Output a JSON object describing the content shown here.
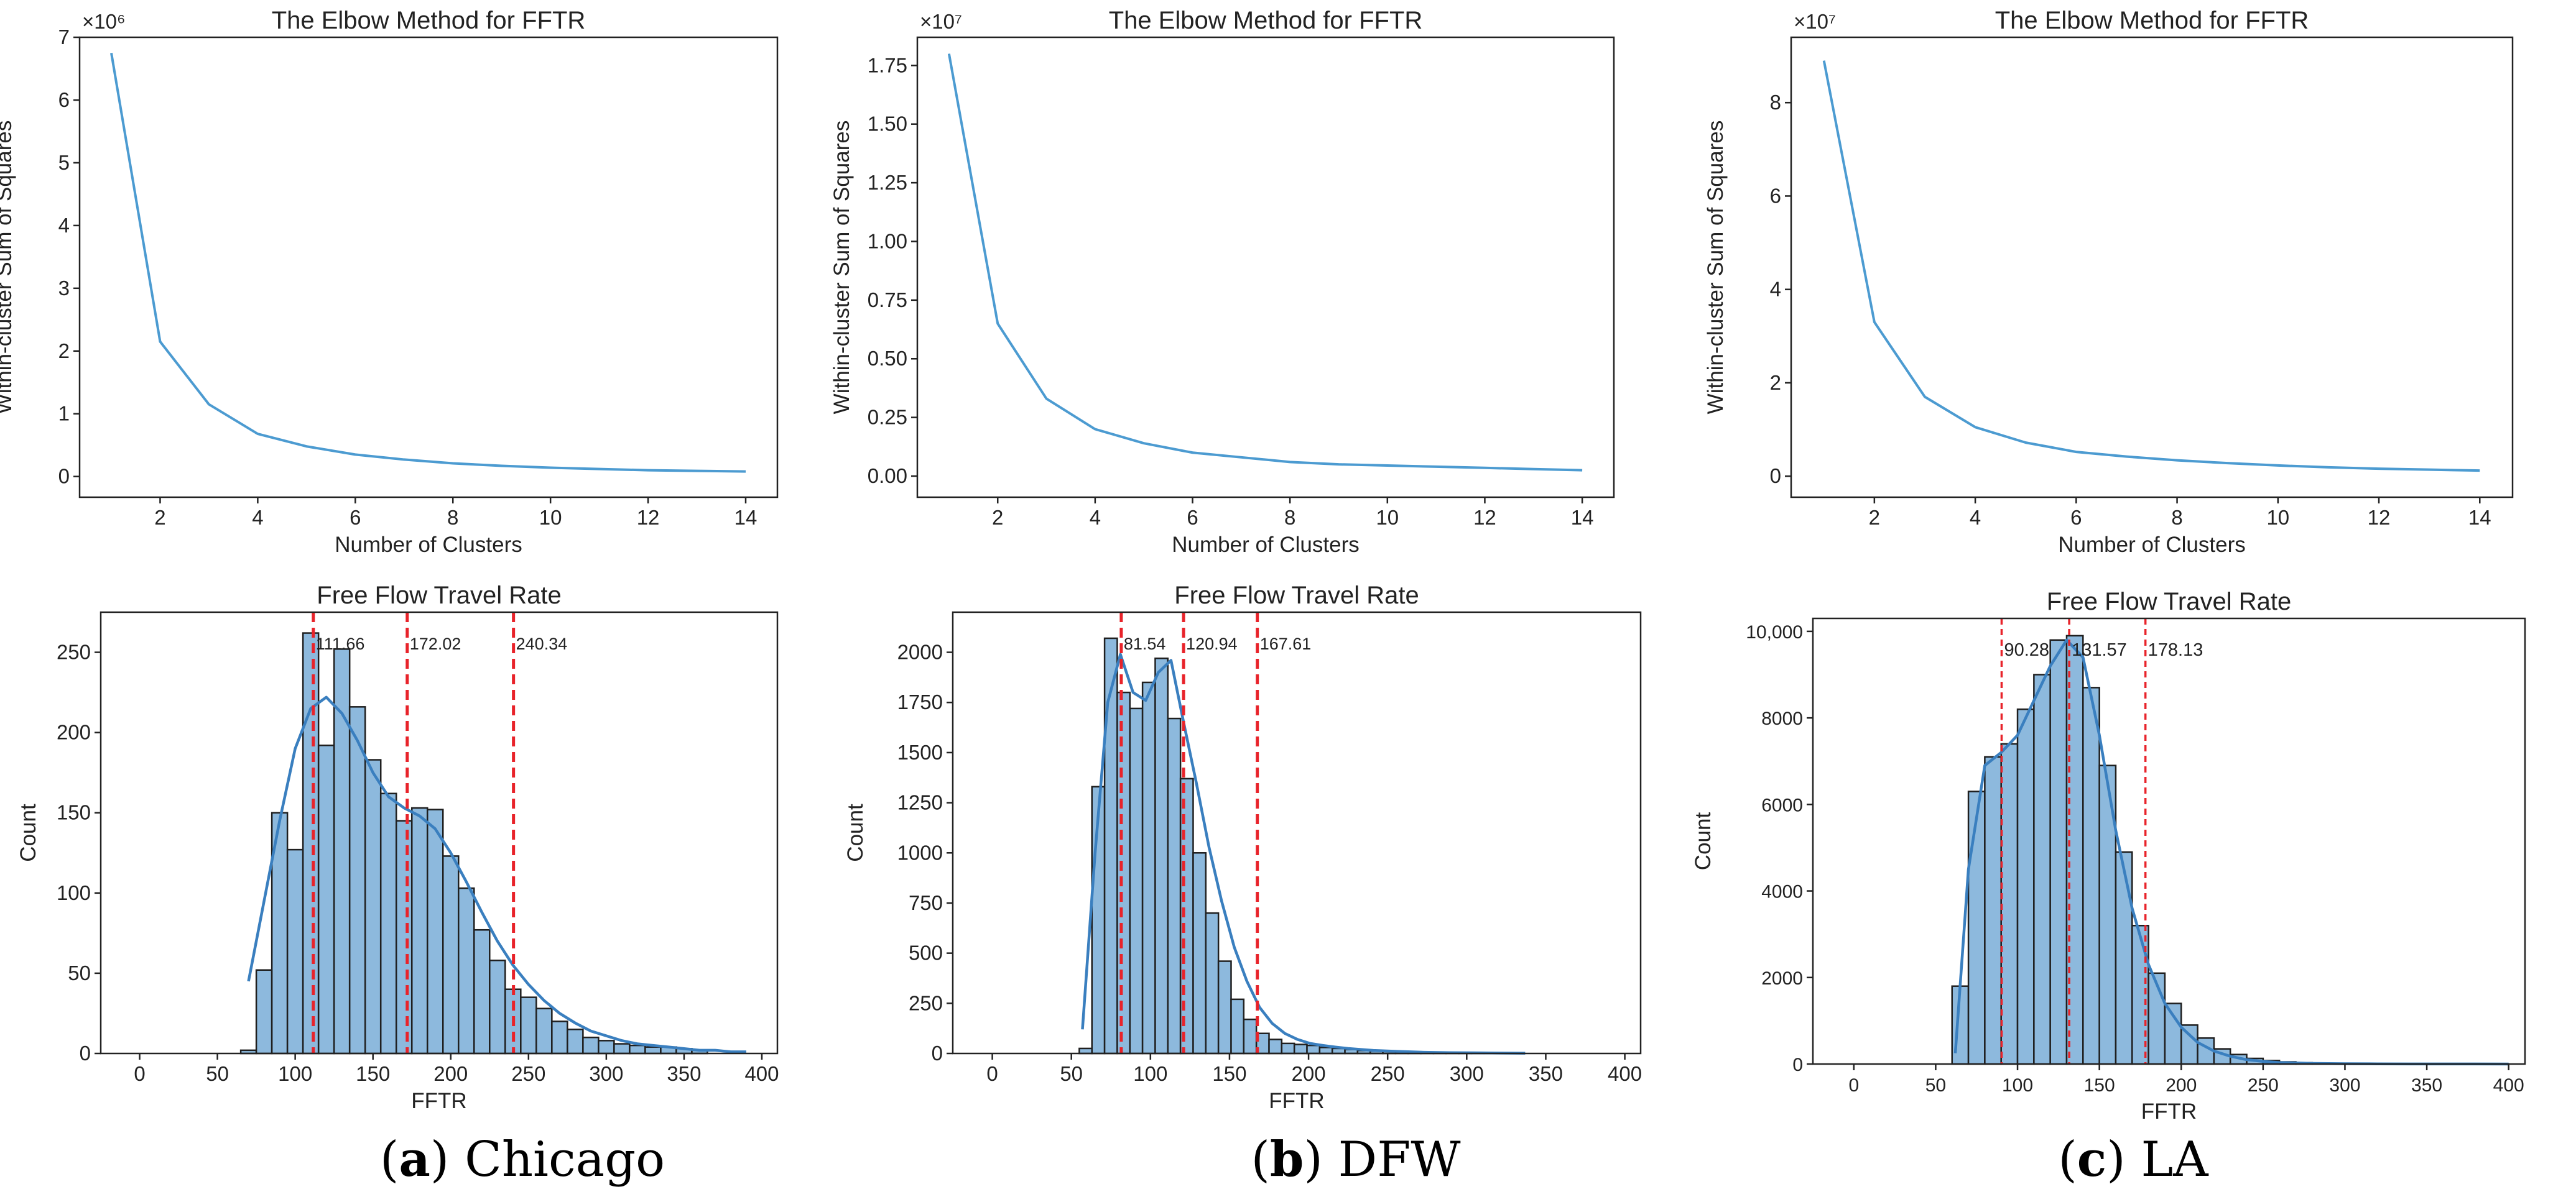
{
  "chart_data": [
    {
      "type": "line",
      "panel": "a",
      "title": "The Elbow Method for FFTR",
      "xlabel": "Number of Clusters",
      "ylabel": "Within-cluster Sum of Squares",
      "multiplier_label": "×10⁶",
      "x": [
        1,
        2,
        3,
        4,
        5,
        6,
        7,
        8,
        9,
        10,
        11,
        12,
        13,
        14
      ],
      "y": [
        6.75,
        2.15,
        1.15,
        0.68,
        0.48,
        0.35,
        0.27,
        0.21,
        0.17,
        0.14,
        0.12,
        0.1,
        0.09,
        0.08
      ],
      "xlim": [
        0.35,
        14.65
      ],
      "ylim": [
        -0.33,
        7.0
      ],
      "xticks": [
        2,
        4,
        6,
        8,
        10,
        12,
        14
      ],
      "yticks": [
        0,
        1,
        2,
        3,
        4,
        5,
        6,
        7
      ],
      "ytick_labels": [
        "0",
        "1",
        "2",
        "3",
        "4",
        "5",
        "6",
        "7"
      ],
      "line_color": "#4c9bd1"
    },
    {
      "type": "line",
      "panel": "b",
      "title": "The Elbow Method for FFTR",
      "xlabel": "Number of Clusters",
      "ylabel": "Within-cluster Sum of Squares",
      "multiplier_label": "×10⁷",
      "x": [
        1,
        2,
        3,
        4,
        5,
        6,
        7,
        8,
        9,
        10,
        11,
        12,
        13,
        14
      ],
      "y": [
        1.8,
        0.65,
        0.33,
        0.2,
        0.14,
        0.1,
        0.08,
        0.06,
        0.05,
        0.045,
        0.04,
        0.035,
        0.03,
        0.025
      ],
      "xlim": [
        0.35,
        14.65
      ],
      "ylim": [
        -0.09,
        1.87
      ],
      "xticks": [
        2,
        4,
        6,
        8,
        10,
        12,
        14
      ],
      "yticks": [
        0,
        0.25,
        0.5,
        0.75,
        1.0,
        1.25,
        1.5,
        1.75
      ],
      "ytick_labels": [
        "0.00",
        "0.25",
        "0.50",
        "0.75",
        "1.00",
        "1.25",
        "1.50",
        "1.75"
      ],
      "line_color": "#4c9bd1"
    },
    {
      "type": "line",
      "panel": "c",
      "title": "The Elbow Method for FFTR",
      "xlabel": "Number of Clusters",
      "ylabel": "Within-cluster Sum of Squares",
      "multiplier_label": "×10⁷",
      "x": [
        1,
        2,
        3,
        4,
        5,
        6,
        7,
        8,
        9,
        10,
        11,
        12,
        13,
        14
      ],
      "y": [
        8.9,
        3.3,
        1.7,
        1.05,
        0.72,
        0.52,
        0.42,
        0.34,
        0.28,
        0.23,
        0.19,
        0.16,
        0.14,
        0.12
      ],
      "xlim": [
        0.35,
        14.65
      ],
      "ylim": [
        -0.45,
        9.4
      ],
      "xticks": [
        2,
        4,
        6,
        8,
        10,
        12,
        14
      ],
      "yticks": [
        0,
        2,
        4,
        6,
        8
      ],
      "ytick_labels": [
        "0",
        "2",
        "4",
        "6",
        "8"
      ],
      "line_color": "#4c9bd1"
    },
    {
      "type": "bar",
      "panel": "a",
      "title": "Free Flow Travel Rate",
      "xlabel": "FFTR",
      "ylabel": "Count",
      "bin_start": 65,
      "bin_width": 10,
      "values": [
        2,
        52,
        150,
        127,
        262,
        192,
        252,
        216,
        183,
        162,
        145,
        153,
        152,
        123,
        103,
        77,
        58,
        40,
        35,
        28,
        20,
        15,
        10,
        8,
        6,
        5,
        4,
        4,
        3,
        2
      ],
      "kde_x": [
        70,
        80,
        90,
        100,
        110,
        120,
        130,
        140,
        150,
        160,
        170,
        180,
        190,
        200,
        210,
        220,
        230,
        240,
        250,
        260,
        270,
        280,
        290,
        300,
        310,
        320,
        330,
        340,
        350,
        360,
        370,
        380,
        390
      ],
      "kde_y": [
        45,
        95,
        145,
        190,
        215,
        222,
        212,
        195,
        175,
        160,
        153,
        148,
        140,
        125,
        107,
        88,
        70,
        55,
        43,
        33,
        25,
        19,
        14,
        11,
        8,
        6,
        5,
        4,
        3,
        2,
        2,
        1,
        1
      ],
      "cluster_lines": [
        111.66,
        172.02,
        240.34
      ],
      "cluster_labels": [
        "111.66",
        "172.02",
        "240.34"
      ],
      "xlim": [
        -25,
        410
      ],
      "ylim": [
        0,
        275
      ],
      "xticks": [
        0,
        50,
        100,
        150,
        200,
        250,
        300,
        350,
        400
      ],
      "yticks": [
        0,
        50,
        100,
        150,
        200,
        250
      ],
      "ytick_labels": [
        "0",
        "50",
        "100",
        "150",
        "200",
        "250"
      ],
      "bar_color": "#8db9dd",
      "line_color": "#3a7fbf",
      "cluster_color": "#e8232a"
    },
    {
      "type": "bar",
      "panel": "b",
      "title": "Free Flow Travel Rate",
      "xlabel": "FFTR",
      "ylabel": "Count",
      "bin_start": 55,
      "bin_width": 8,
      "values": [
        25,
        1330,
        2070,
        1800,
        1720,
        1850,
        1970,
        1670,
        1370,
        1000,
        700,
        460,
        270,
        170,
        100,
        70,
        50,
        45,
        40,
        30,
        25,
        20,
        15,
        12,
        10,
        8,
        7,
        5,
        5,
        4,
        3,
        2,
        2,
        1,
        1
      ],
      "kde_x": [
        57,
        65,
        73,
        81,
        89,
        97,
        105,
        113,
        121,
        129,
        137,
        145,
        153,
        161,
        169,
        177,
        185,
        193,
        201,
        209,
        217,
        225,
        241,
        257,
        273,
        289,
        305,
        321,
        337
      ],
      "kde_y": [
        120,
        1000,
        1750,
        1990,
        1800,
        1760,
        1900,
        1960,
        1650,
        1350,
        1030,
        760,
        530,
        360,
        230,
        150,
        100,
        70,
        50,
        40,
        32,
        25,
        15,
        10,
        6,
        4,
        3,
        2,
        1
      ],
      "cluster_lines": [
        81.54,
        120.94,
        167.61
      ],
      "cluster_labels": [
        "81.54",
        "120.94",
        "167.61"
      ],
      "xlim": [
        -25,
        410
      ],
      "ylim": [
        0,
        2200
      ],
      "xticks": [
        0,
        50,
        100,
        150,
        200,
        250,
        300,
        350,
        400
      ],
      "yticks": [
        0,
        250,
        500,
        750,
        1000,
        1250,
        1500,
        1750,
        2000
      ],
      "ytick_labels": [
        "0",
        "250",
        "500",
        "750",
        "1000",
        "1250",
        "1500",
        "1750",
        "2000"
      ],
      "bar_color": "#8db9dd",
      "line_color": "#3a7fbf",
      "cluster_color": "#e8232a"
    },
    {
      "type": "bar",
      "panel": "c",
      "title": "Free Flow Travel Rate",
      "xlabel": "FFTR",
      "ylabel": "Count",
      "bin_start": 60,
      "bin_width": 10,
      "values": [
        1800,
        6300,
        7100,
        7400,
        8200,
        9000,
        9800,
        9900,
        8700,
        6900,
        4900,
        3200,
        2100,
        1400,
        900,
        600,
        350,
        220,
        130,
        80,
        50,
        30,
        20,
        15,
        10,
        8,
        5,
        4,
        3,
        2,
        2,
        1,
        1,
        1
      ],
      "kde_x": [
        62,
        70,
        80,
        90,
        100,
        110,
        120,
        130,
        140,
        150,
        160,
        170,
        180,
        190,
        200,
        210,
        220,
        230,
        240,
        250,
        260,
        280,
        300,
        320,
        340,
        360,
        380,
        400
      ],
      "kde_y": [
        250,
        4500,
        6900,
        7200,
        7600,
        8400,
        9200,
        9800,
        9400,
        7600,
        5400,
        3600,
        2300,
        1400,
        850,
        500,
        300,
        180,
        100,
        60,
        35,
        15,
        8,
        4,
        2,
        1,
        1,
        0
      ],
      "cluster_lines": [
        90.28,
        131.57,
        178.13
      ],
      "cluster_labels": [
        "90.28",
        "131.57",
        "178.13"
      ],
      "xlim": [
        -25,
        410
      ],
      "ylim": [
        0,
        10300
      ],
      "xticks": [
        0,
        50,
        100,
        150,
        200,
        250,
        300,
        350,
        400
      ],
      "yticks": [
        0,
        2000,
        4000,
        6000,
        8000,
        10000
      ],
      "ytick_labels": [
        "0",
        "2000",
        "4000",
        "6000",
        "8000",
        "10,000"
      ],
      "bar_color": "#8db9dd",
      "line_color": "#3a7fbf",
      "cluster_color": "#e8232a"
    }
  ],
  "captions": [
    {
      "letter": "a",
      "city": " Chicago"
    },
    {
      "letter": "b",
      "city": " DFW"
    },
    {
      "letter": "c",
      "city": " LA"
    }
  ]
}
